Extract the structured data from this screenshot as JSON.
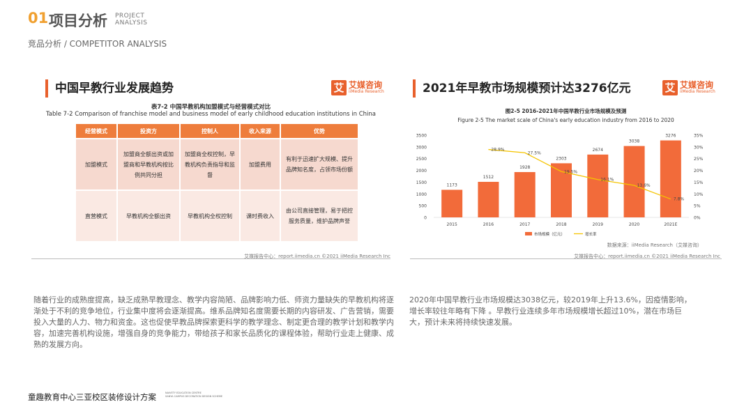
{
  "header": {
    "number": "01",
    "title": "项目分析",
    "title_en_1": "PROJECT",
    "title_en_2": "ANALYSIS",
    "subtitle": "竞品分析 / COMPETITOR ANALYSIS"
  },
  "left_panel": {
    "title": "中国早教行业发展趋势",
    "logo": {
      "mark": "艾",
      "name": "艾媒咨询",
      "name_en": "iiMedia Research"
    },
    "table_title_cn": "表7-2 中国早教机构加盟模式与经营模式对比",
    "table_title_en": "Table 7-2 Comparison of franchise model and business model of early childhood education institutions in China",
    "headers": [
      "经营模式",
      "投资方",
      "控制人",
      "收入来源",
      "优势"
    ],
    "rows": [
      [
        "加盟模式",
        "加盟商全额出资或加盟商和早教机构按比例共同分担",
        "加盟商全权控制，早教机构负责指导和监督",
        "加盟费用",
        "有利于迅速扩大规模、提升品牌知名度，占领市场份额"
      ],
      [
        "直营模式",
        "早教机构全额出资",
        "早教机构全权控制",
        "课时费收入",
        "由公司直接管理，易于把控服务质量，维护品牌声誉"
      ]
    ],
    "footer": "艾媒报告中心：report.iimedia.cn  ©2021  iiMedia Research  Inc"
  },
  "right_panel": {
    "title": "2021年早教市场规模预计达3276亿元",
    "logo": {
      "mark": "艾",
      "name": "艾媒咨询",
      "name_en": "iiMedia Research"
    },
    "source": "数据来源：iiMedia Research（艾媒咨询）",
    "footer": "艾媒报告中心：report.iimedia.cn  ©2021  iiMedia Research  Inc"
  },
  "chart_data": {
    "type": "bar",
    "title": "图2-5 2016-2021年中国早教行业市场规模及预测",
    "subtitle": "Figure 2-5 The market scale of China's early education industry from 2016 to 2020",
    "categories": [
      "2015",
      "2016",
      "2017",
      "2018",
      "2019",
      "2020",
      "2021E"
    ],
    "series": [
      {
        "name": "市场规模（亿元）",
        "type": "bar",
        "color": "#f26b3a",
        "values": [
          1173,
          1512,
          1928,
          2303,
          2674,
          3038,
          3276
        ]
      },
      {
        "name": "增长率",
        "type": "line",
        "color": "#f5c400",
        "values": [
          null,
          28.9,
          27.5,
          19.5,
          16.1,
          13.6,
          7.8
        ],
        "labels": [
          "",
          "28.9%",
          "27.5%",
          "19.5%",
          "16.1%",
          "13.6%",
          "7.8%"
        ]
      }
    ],
    "ylim": [
      0,
      3500
    ],
    "yticks": [
      "0",
      "500",
      "1000",
      "1500",
      "2000",
      "2500",
      "3000",
      "3500"
    ],
    "y2lim": [
      0,
      35
    ],
    "y2ticks": [
      "0%",
      "5%",
      "10%",
      "15%",
      "20%",
      "25%",
      "30%",
      "35%"
    ],
    "legend": "bottom"
  },
  "paragraphs": {
    "left": "随着行业的成熟度提高，缺乏成熟早教理念、教学内容简陋、品牌影响力低、师资力量缺失的早教机构将逐渐处于不利的竞争地位，行业集中度将会逐渐提高。维系品牌知名度需要长期的内容研发、广告营销，需要投入大量的人力、物力和资金。这也促使早教品牌探索更科学的教学理念、制定更合理的教学计划和教学内容，加速完善机构设施，增强自身的竞争能力，带给孩子和家长品质化的课程体验，帮助行业走上健康、成熟的发展方向。",
    "right": "2020年中国早教行业市场规模达3038亿元，较2019年上升13.6%，因疫情影响，增长率较往年略有下降 。早教行业连续多年市场规模增长超过10%，潜在市场巨大，预计未来将持续快速发展。"
  },
  "bottom": {
    "title": "童趣教育中心三亚校区装修设计方案",
    "en_1": "NAIVETY EDUCATION CENTRE",
    "en_2": "SANYA CAMPUS DECORATION DESIGN SCHEME"
  }
}
